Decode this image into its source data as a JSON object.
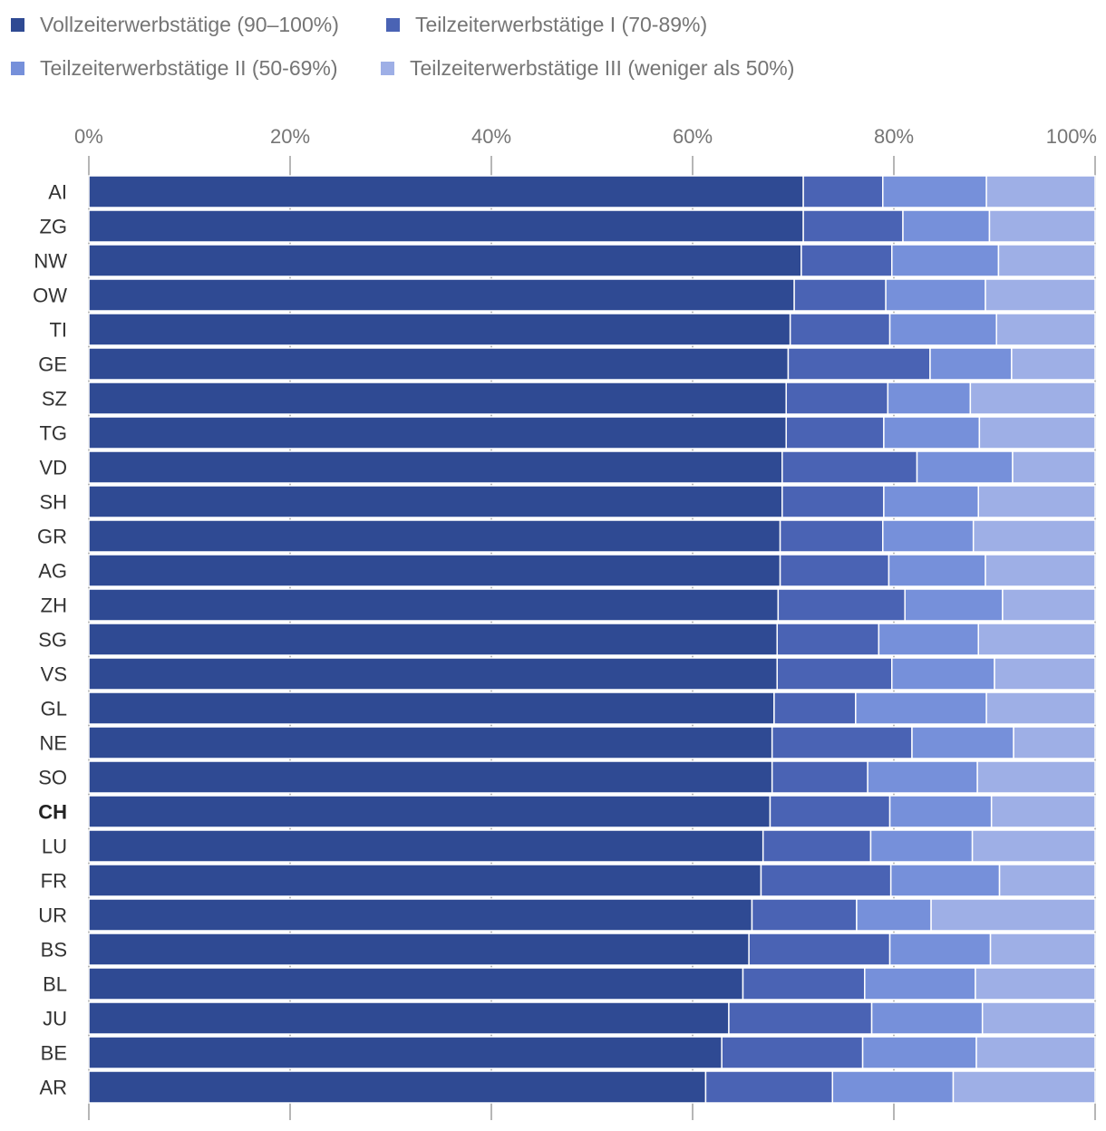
{
  "chart_data": {
    "type": "bar",
    "orientation": "horizontal",
    "stacked": true,
    "xlim": [
      0,
      100
    ],
    "xticks": [
      "0%",
      "20%",
      "40%",
      "60%",
      "80%",
      "100%"
    ],
    "grid": true,
    "legend_position": "top-left",
    "categories": [
      "AI",
      "ZG",
      "NW",
      "OW",
      "TI",
      "GE",
      "SZ",
      "TG",
      "VD",
      "SH",
      "GR",
      "AG",
      "ZH",
      "SG",
      "VS",
      "GL",
      "NE",
      "SO",
      "CH",
      "LU",
      "FR",
      "UR",
      "BS",
      "BL",
      "JU",
      "BE",
      "AR"
    ],
    "highlight_category": "CH",
    "series": [
      {
        "name": "Vollzeiterwerbstätige (90–100%)",
        "color": "#2f4a93",
        "values": [
          71.0,
          71.0,
          70.8,
          70.1,
          69.7,
          69.5,
          69.3,
          69.3,
          68.9,
          68.9,
          68.7,
          68.7,
          68.5,
          68.4,
          68.4,
          68.1,
          67.9,
          67.9,
          67.7,
          67.0,
          66.8,
          65.9,
          65.6,
          65.0,
          63.6,
          62.9,
          61.3
        ]
      },
      {
        "name": "Teilzeiterwerbstätige I (70-89%)",
        "color": "#4a63b4",
        "values": [
          7.9,
          9.9,
          9.0,
          9.1,
          9.9,
          14.1,
          10.1,
          9.7,
          13.4,
          10.1,
          10.2,
          10.8,
          12.6,
          10.1,
          11.4,
          8.1,
          13.9,
          9.5,
          11.9,
          10.7,
          12.9,
          10.4,
          14.0,
          12.1,
          14.2,
          14.0,
          12.6
        ]
      },
      {
        "name": "Teilzeiterwerbstätige II (50-69%)",
        "color": "#7690da",
        "values": [
          10.3,
          8.6,
          10.6,
          9.9,
          10.6,
          8.1,
          8.2,
          9.5,
          9.5,
          9.4,
          9.0,
          9.6,
          9.7,
          9.9,
          10.2,
          13.0,
          10.1,
          10.9,
          10.1,
          10.1,
          10.8,
          7.4,
          10.0,
          11.0,
          11.0,
          11.3,
          12.0
        ]
      },
      {
        "name": "Teilzeiterwerbstätige III (weniger als 50%)",
        "color": "#9eafe6",
        "values": [
          10.8,
          10.5,
          9.6,
          10.9,
          9.8,
          8.3,
          12.4,
          11.5,
          8.2,
          11.6,
          12.1,
          10.9,
          9.2,
          11.6,
          10.0,
          10.8,
          8.1,
          11.7,
          10.3,
          12.2,
          9.5,
          16.3,
          10.4,
          11.9,
          11.2,
          11.8,
          14.1
        ]
      }
    ]
  }
}
